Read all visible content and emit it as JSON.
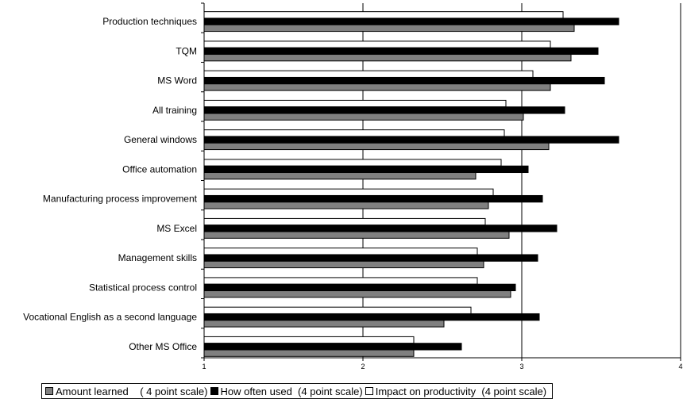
{
  "chart_data": {
    "type": "bar",
    "orientation": "horizontal",
    "categories": [
      "Production techniques",
      "TQM",
      "MS Word",
      "All training",
      "General windows",
      "Office automation",
      "Manufacturing process improvement",
      "MS Excel",
      "Management skills",
      "Statistical process control",
      "Vocational English as a second language",
      "Other MS Office"
    ],
    "series": [
      {
        "name": "Impact on productivity  (4 point scale)",
        "color": "#ffffff",
        "values": [
          3.26,
          3.18,
          3.07,
          2.9,
          2.89,
          2.87,
          2.82,
          2.77,
          2.72,
          2.72,
          2.68,
          2.32
        ]
      },
      {
        "name": "How often used  (4 point scale)",
        "color": "#000000",
        "values": [
          3.61,
          3.48,
          3.52,
          3.27,
          3.61,
          3.04,
          3.13,
          3.22,
          3.1,
          2.96,
          3.11,
          2.62
        ]
      },
      {
        "name": "Amount learned    ( 4 point scale)",
        "color": "#808080",
        "values": [
          3.33,
          3.31,
          3.18,
          3.01,
          3.17,
          2.71,
          2.79,
          2.92,
          2.76,
          2.93,
          2.51,
          2.32
        ]
      }
    ],
    "xlim": [
      1,
      4
    ],
    "xticks": [
      "1",
      "2",
      "3",
      "4"
    ],
    "grid": true,
    "legend_position": "bottom",
    "legend_order": [
      2,
      1,
      0
    ]
  }
}
